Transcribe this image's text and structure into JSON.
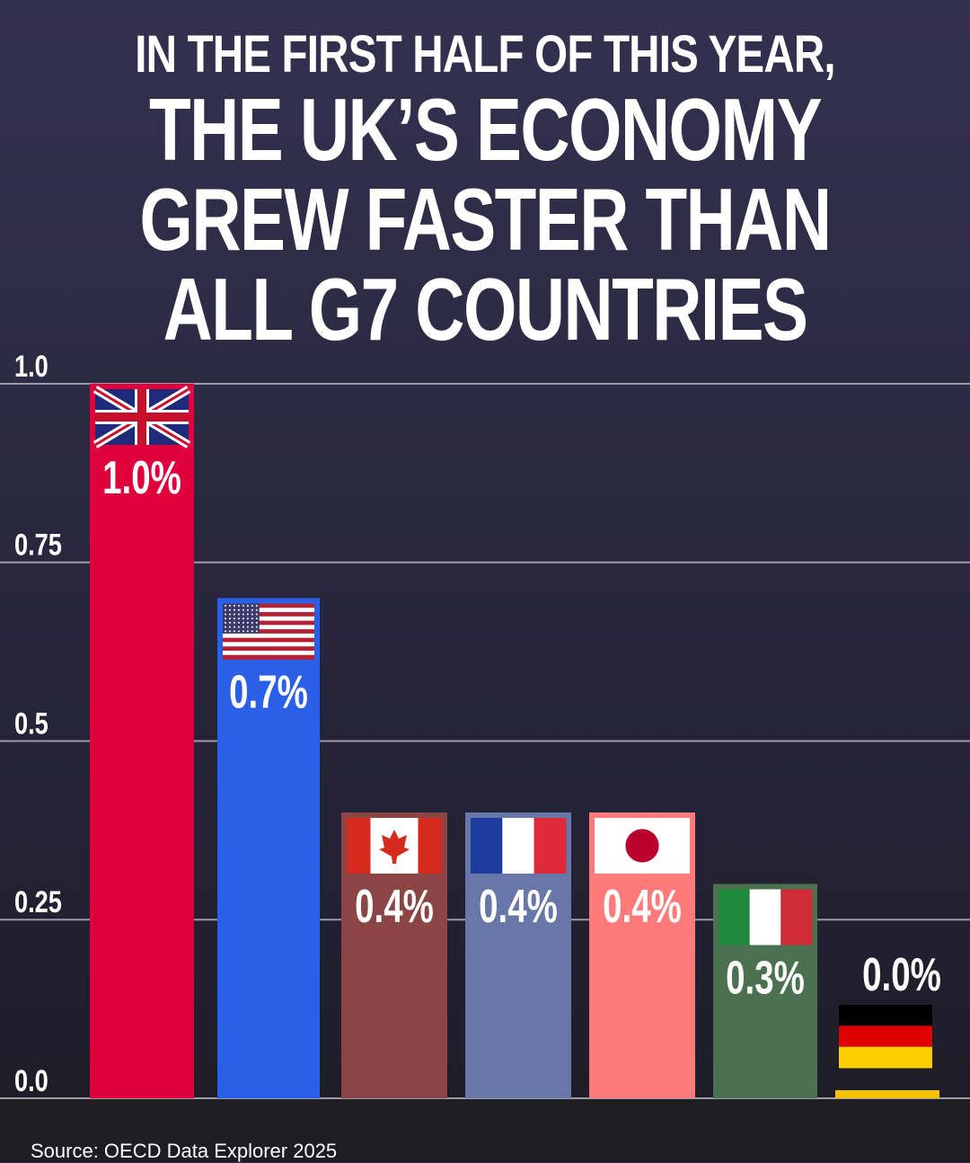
{
  "headline": {
    "line1": "IN THE FIRST HALF OF THIS YEAR,",
    "line2": "THE UK’S ECONOMY",
    "line3": "GREW FASTER THAN",
    "line4": "ALL G7 COUNTRIES"
  },
  "source": "Source: OECD Data Explorer 2025",
  "chart_data": {
    "type": "bar",
    "categories": [
      "UK",
      "USA",
      "Canada",
      "France",
      "Japan",
      "Italy",
      "Germany"
    ],
    "values": [
      1.0,
      0.7,
      0.4,
      0.4,
      0.4,
      0.3,
      0.0
    ],
    "data_labels": [
      "1.0%",
      "0.7%",
      "0.4%",
      "0.4%",
      "0.4%",
      "0.3%",
      "0.0%"
    ],
    "ylim": [
      0,
      1.0
    ],
    "yticks": [
      0.0,
      0.25,
      0.5,
      0.75,
      1.0
    ],
    "ytick_labels": [
      "0.0",
      "0.25",
      "0.5",
      "0.75",
      "1.0"
    ],
    "grid": true,
    "colors": [
      "#e0003c",
      "#2a5fe8",
      "#8b4545",
      "#6677a8",
      "#ff7b7b",
      "#4c7150",
      "#f5c200"
    ],
    "flags": [
      "uk-flag-icon",
      "us-flag-icon",
      "canada-flag-icon",
      "france-flag-icon",
      "japan-flag-icon",
      "italy-flag-icon",
      "germany-flag-icon"
    ]
  }
}
